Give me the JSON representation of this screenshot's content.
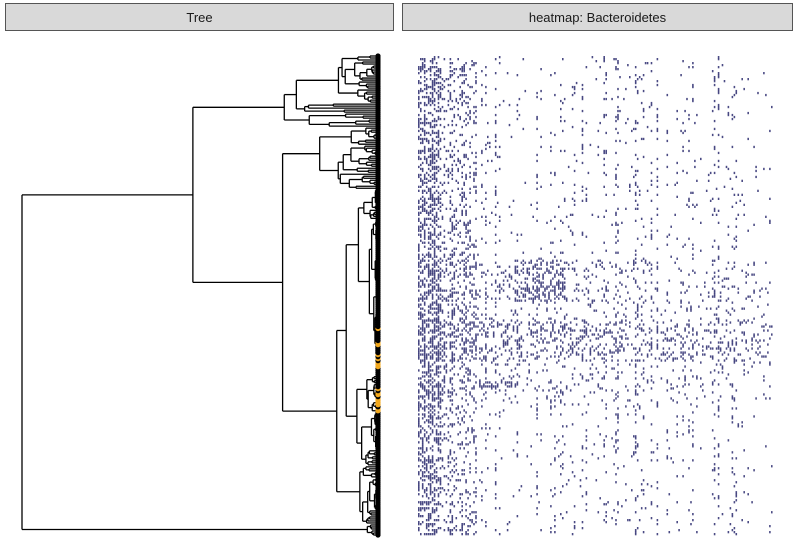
{
  "chart_data": {
    "type": "heatmap",
    "panels": [
      {
        "title": "Tree",
        "kind": "phylogenetic-tree",
        "tip_color_default": "#000000",
        "tip_color_highlight": "#f2a81d"
      },
      {
        "title": "heatmap: Bacteroidetes",
        "kind": "presence-heatmap",
        "fill_present": "#2b2b6e",
        "fill_absent": "#ffffff"
      }
    ],
    "tips_estimated": 240,
    "columns_estimated": 180,
    "grid": false,
    "legend": "none"
  }
}
